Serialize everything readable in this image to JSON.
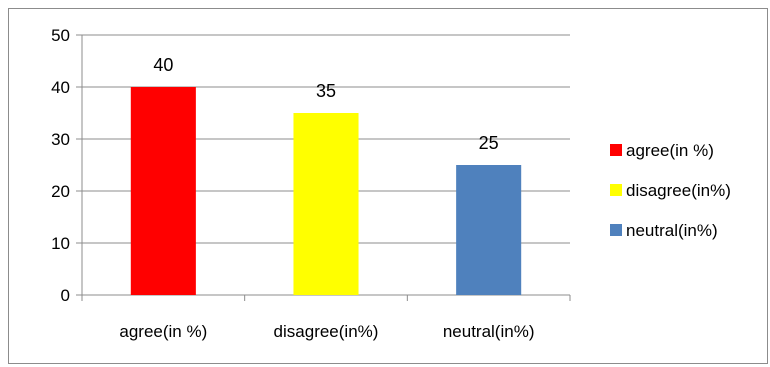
{
  "chart_data": {
    "type": "bar",
    "title": "",
    "xlabel": "",
    "ylabel": "",
    "categories": [
      "agree(in %)",
      "disagree(in%)",
      "neutral(in%)"
    ],
    "values": [
      40,
      35,
      25
    ],
    "colors": [
      "#ff0000",
      "#ffff00",
      "#4f81bd"
    ],
    "ylim": [
      0,
      50
    ],
    "yticks": [
      0,
      10,
      20,
      30,
      40,
      50
    ],
    "grid": true,
    "data_labels": true,
    "legend": {
      "position": "right",
      "entries": [
        "agree(in %)",
        "disagree(in%)",
        "neutral(in%)"
      ]
    }
  }
}
